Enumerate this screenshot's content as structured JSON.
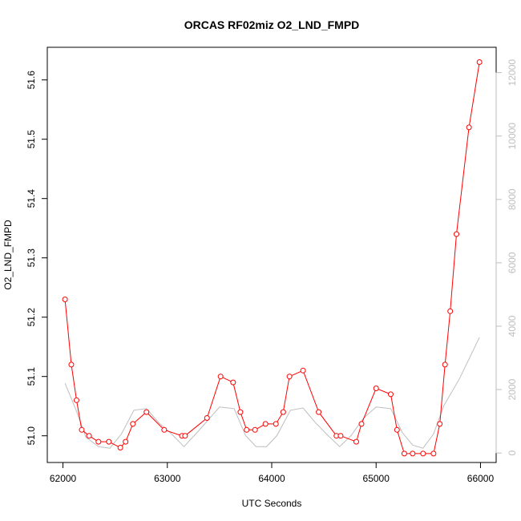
{
  "chart_data": {
    "type": "line",
    "title": "ORCAS RF02miz O2_LND_FMPD",
    "xlabel": "UTC Seconds",
    "ylabel": "O2_LND_FMPD",
    "y2label": "",
    "xlim": [
      61850,
      66150
    ],
    "ylim": [
      50.955,
      51.655
    ],
    "y2lim": [
      -300,
      12800
    ],
    "x_ticks": [
      62000,
      63000,
      64000,
      65000,
      66000
    ],
    "y_ticks": [
      51.0,
      51.1,
      51.2,
      51.3,
      51.4,
      51.5,
      51.6
    ],
    "y2_ticks": [
      0,
      2000,
      4000,
      6000,
      8000,
      10000,
      12000
    ],
    "grid": false,
    "series": [
      {
        "axis": "left",
        "color": "#ff0000",
        "marker": "open-circle",
        "x": [
          62020,
          62080,
          62130,
          62180,
          62250,
          62340,
          62440,
          62550,
          62600,
          62670,
          62800,
          62970,
          63140,
          63170,
          63380,
          63510,
          63630,
          63700,
          63760,
          63840,
          63940,
          64040,
          64110,
          64170,
          64300,
          64450,
          64620,
          64660,
          64810,
          64860,
          65000,
          65140,
          65200,
          65270,
          65350,
          65450,
          65550,
          65610,
          65660,
          65710,
          65770,
          65890,
          65990
        ],
        "y": [
          51.23,
          51.12,
          51.06,
          51.01,
          51.0,
          50.99,
          50.99,
          50.98,
          50.99,
          51.02,
          51.04,
          51.01,
          51.0,
          51.0,
          51.03,
          51.1,
          51.09,
          51.04,
          51.01,
          51.01,
          51.02,
          51.02,
          51.04,
          51.1,
          51.11,
          51.04,
          51.0,
          51.0,
          50.99,
          51.02,
          51.08,
          51.07,
          51.01,
          50.97,
          50.97,
          50.97,
          50.97,
          51.02,
          51.12,
          51.21,
          51.34,
          51.52,
          51.63
        ]
      },
      {
        "axis": "right",
        "color": "#bebebe",
        "marker": "none",
        "x": [
          62020,
          62120,
          62220,
          62340,
          62450,
          62560,
          62680,
          62800,
          62920,
          63040,
          63160,
          63300,
          63500,
          63640,
          63750,
          63850,
          63950,
          64050,
          64180,
          64300,
          64420,
          64540,
          64650,
          64760,
          64880,
          65000,
          65140,
          65250,
          65350,
          65450,
          65550,
          65650,
          65800,
          65990
        ],
        "y": [
          2200,
          1400,
          500,
          200,
          150,
          600,
          1350,
          1400,
          950,
          600,
          200,
          700,
          1450,
          1400,
          550,
          200,
          200,
          550,
          1350,
          1420,
          950,
          550,
          200,
          550,
          1100,
          1450,
          1400,
          650,
          250,
          150,
          600,
          1500,
          2350,
          3650
        ]
      }
    ]
  }
}
